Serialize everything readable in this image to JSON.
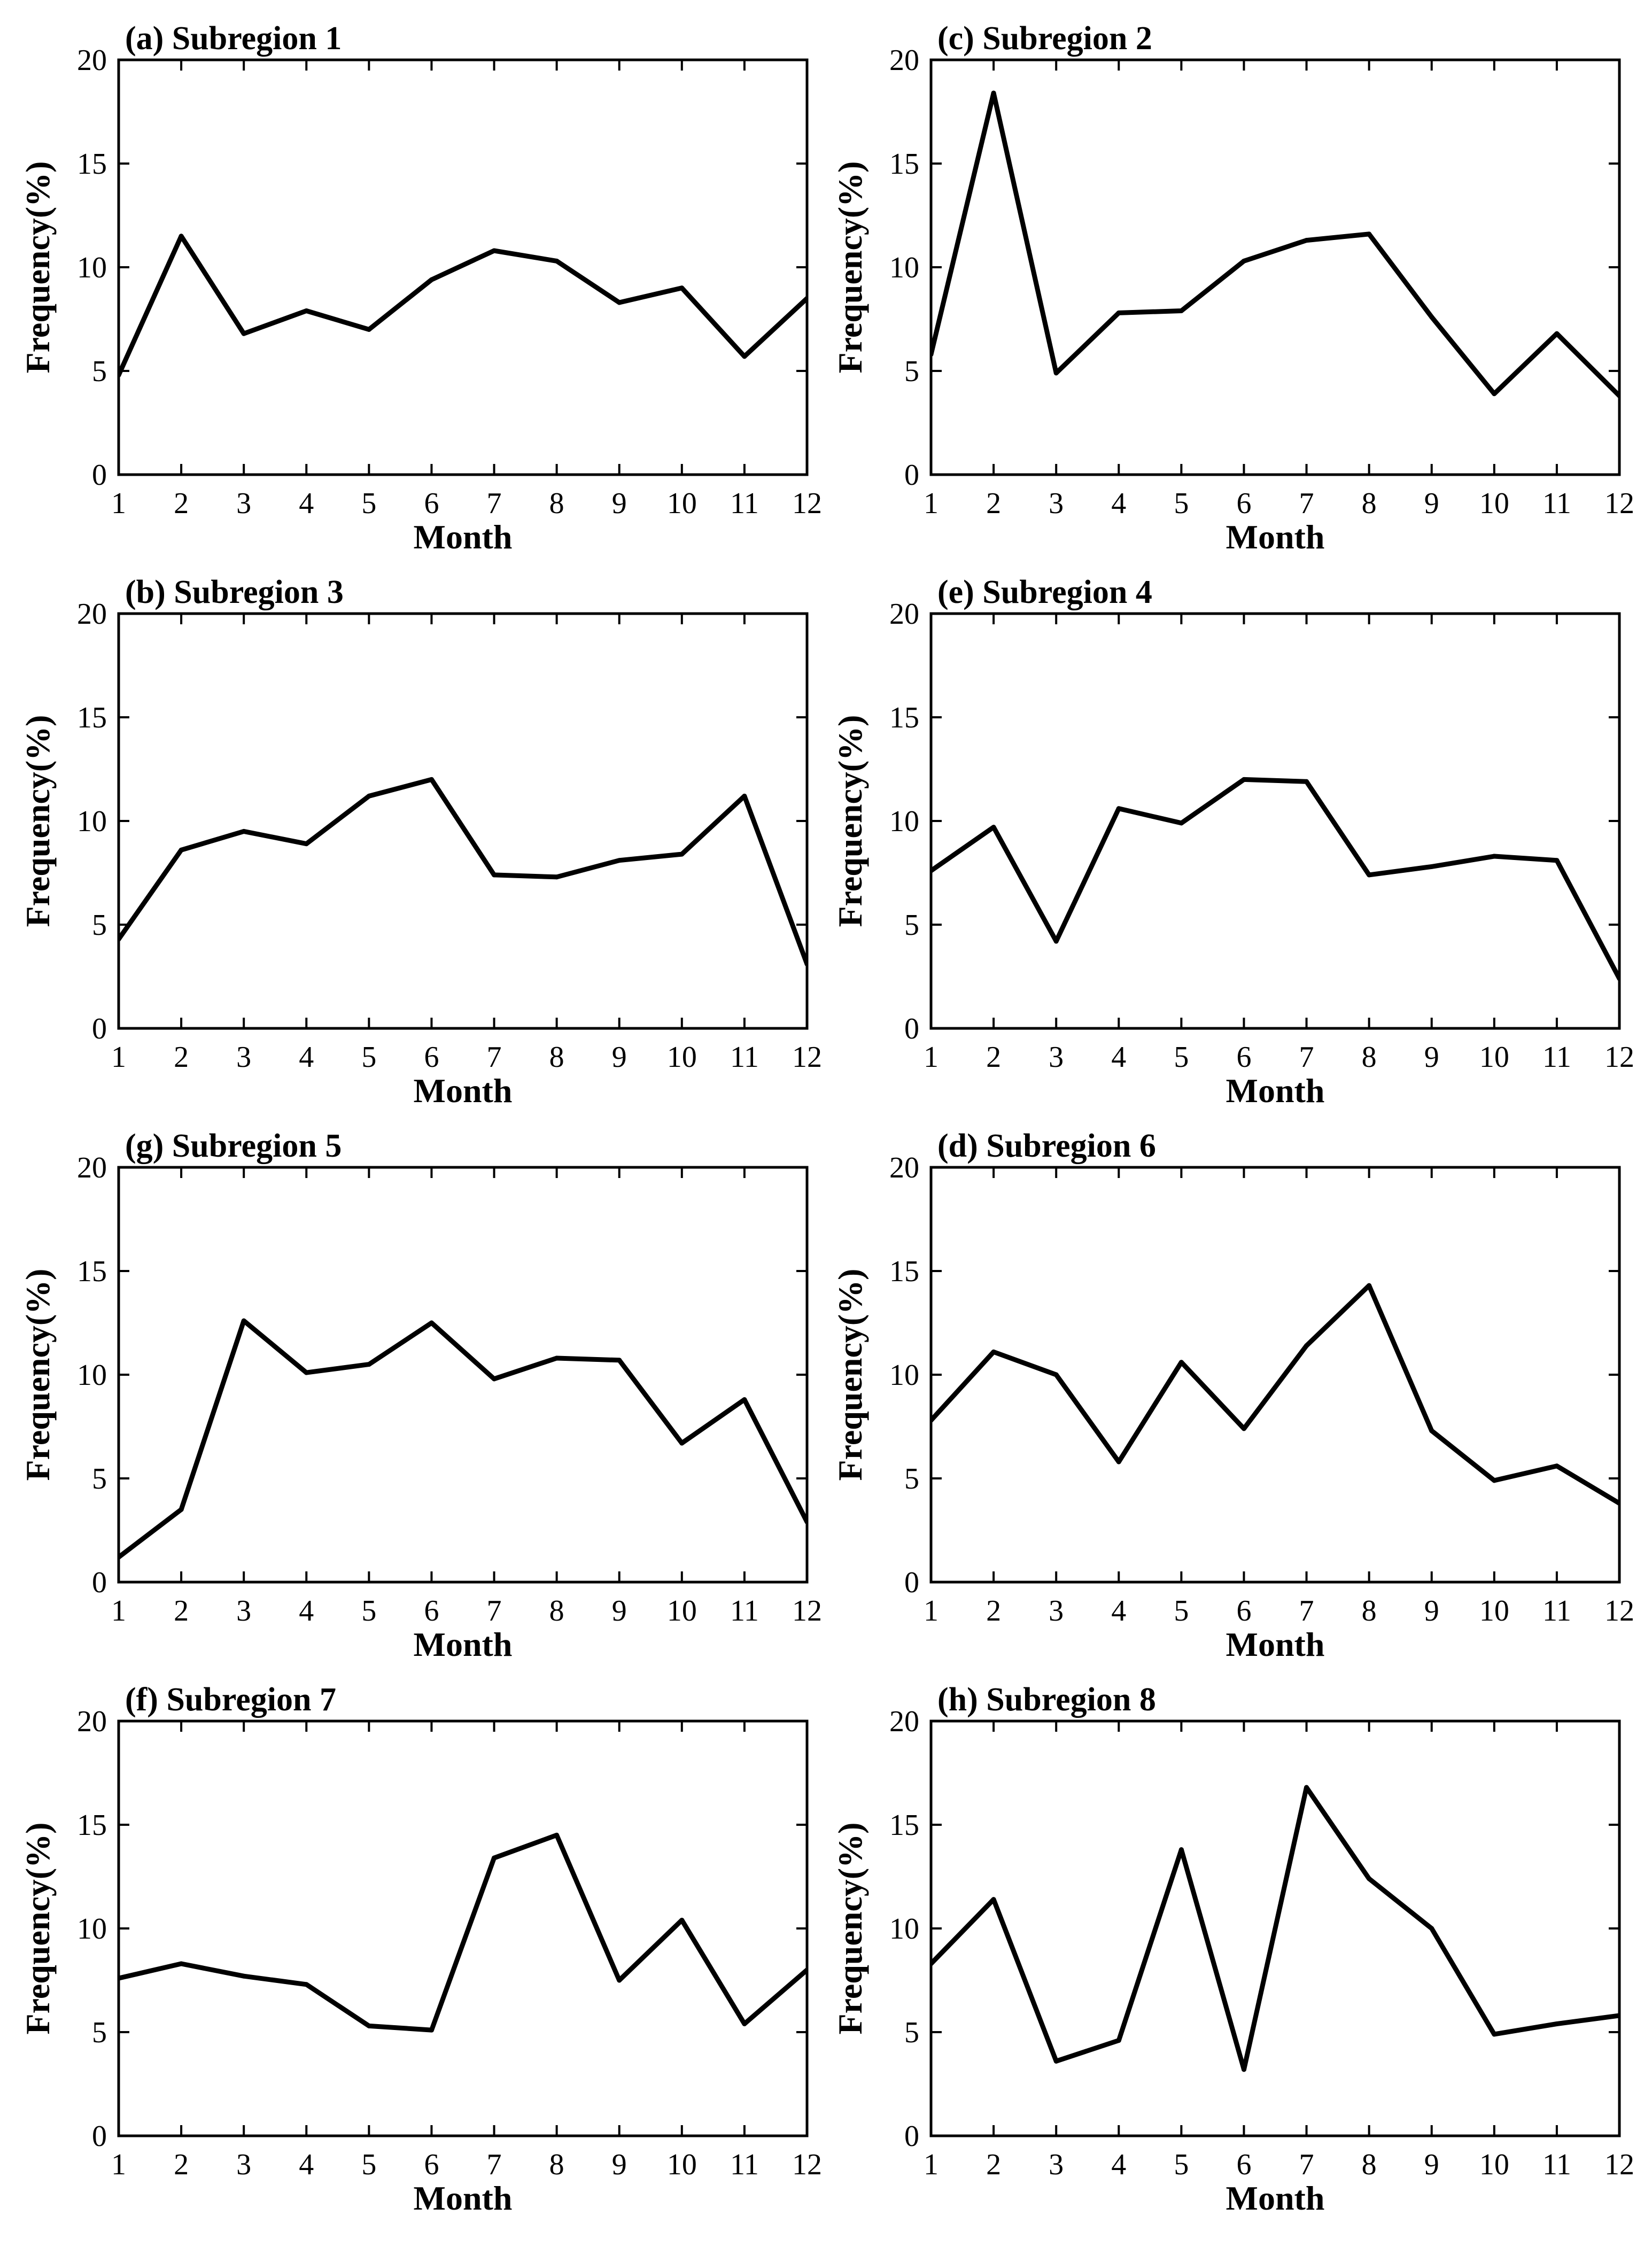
{
  "chart_data": [
    {
      "type": "line",
      "title": "(a) Subregion 1",
      "xlabel": "Month",
      "ylabel": "Frequency(%)",
      "xlim": [
        1,
        12
      ],
      "ylim": [
        0,
        20
      ],
      "x": [
        1,
        2,
        3,
        4,
        5,
        6,
        7,
        8,
        9,
        10,
        11,
        12
      ],
      "xticks": [
        "1",
        "2",
        "3",
        "4",
        "5",
        "6",
        "7",
        "8",
        "9",
        "10",
        "11",
        "12"
      ],
      "yticks": [
        "0",
        "5",
        "10",
        "15",
        "20"
      ],
      "values": [
        4.8,
        11.5,
        6.8,
        7.9,
        7.0,
        9.4,
        10.8,
        10.3,
        8.3,
        9.0,
        5.7,
        8.5
      ]
    },
    {
      "type": "line",
      "title": "(c) Subregion 2",
      "xlabel": "Month",
      "ylabel": "Frequency(%)",
      "xlim": [
        1,
        12
      ],
      "ylim": [
        0,
        20
      ],
      "x": [
        1,
        2,
        3,
        4,
        5,
        6,
        7,
        8,
        9,
        10,
        11,
        12
      ],
      "xticks": [
        "1",
        "2",
        "3",
        "4",
        "5",
        "6",
        "7",
        "8",
        "9",
        "10",
        "11",
        "12"
      ],
      "yticks": [
        "0",
        "5",
        "10",
        "15",
        "20"
      ],
      "values": [
        5.8,
        18.4,
        4.9,
        7.8,
        7.9,
        10.3,
        11.3,
        11.6,
        7.6,
        3.9,
        6.8,
        3.8
      ]
    },
    {
      "type": "line",
      "title": "(b) Subregion 3",
      "xlabel": "Month",
      "ylabel": "Frequency(%)",
      "xlim": [
        1,
        12
      ],
      "ylim": [
        0,
        20
      ],
      "x": [
        1,
        2,
        3,
        4,
        5,
        6,
        7,
        8,
        9,
        10,
        11,
        12
      ],
      "xticks": [
        "1",
        "2",
        "3",
        "4",
        "5",
        "6",
        "7",
        "8",
        "9",
        "10",
        "11",
        "12"
      ],
      "yticks": [
        "0",
        "5",
        "10",
        "15",
        "20"
      ],
      "values": [
        4.3,
        8.6,
        9.5,
        8.9,
        11.2,
        12.0,
        7.4,
        7.3,
        8.1,
        8.4,
        11.2,
        3.1
      ]
    },
    {
      "type": "line",
      "title": "(e) Subregion 4",
      "xlabel": "Month",
      "ylabel": "Frequency(%)",
      "xlim": [
        1,
        12
      ],
      "ylim": [
        0,
        20
      ],
      "x": [
        1,
        2,
        3,
        4,
        5,
        6,
        7,
        8,
        9,
        10,
        11,
        12
      ],
      "xticks": [
        "1",
        "2",
        "3",
        "4",
        "5",
        "6",
        "7",
        "8",
        "9",
        "10",
        "11",
        "12"
      ],
      "yticks": [
        "0",
        "5",
        "10",
        "15",
        "20"
      ],
      "values": [
        7.6,
        9.7,
        4.2,
        10.6,
        9.9,
        12.0,
        11.9,
        7.4,
        7.8,
        8.3,
        8.1,
        2.4
      ]
    },
    {
      "type": "line",
      "title": "(g) Subregion 5",
      "xlabel": "Month",
      "ylabel": "Frequency(%)",
      "xlim": [
        1,
        12
      ],
      "ylim": [
        0,
        20
      ],
      "x": [
        1,
        2,
        3,
        4,
        5,
        6,
        7,
        8,
        9,
        10,
        11,
        12
      ],
      "xticks": [
        "1",
        "2",
        "3",
        "4",
        "5",
        "6",
        "7",
        "8",
        "9",
        "10",
        "11",
        "12"
      ],
      "yticks": [
        "0",
        "5",
        "10",
        "15",
        "20"
      ],
      "values": [
        1.2,
        3.5,
        12.6,
        10.1,
        10.5,
        12.5,
        9.8,
        10.8,
        10.7,
        6.7,
        8.8,
        2.9
      ]
    },
    {
      "type": "line",
      "title": "(d) Subregion 6",
      "xlabel": "Month",
      "ylabel": "Frequency(%)",
      "xlim": [
        1,
        12
      ],
      "ylim": [
        0,
        20
      ],
      "x": [
        1,
        2,
        3,
        4,
        5,
        6,
        7,
        8,
        9,
        10,
        11,
        12
      ],
      "xticks": [
        "1",
        "2",
        "3",
        "4",
        "5",
        "6",
        "7",
        "8",
        "9",
        "10",
        "11",
        "12"
      ],
      "yticks": [
        "0",
        "5",
        "10",
        "15",
        "20"
      ],
      "values": [
        7.8,
        11.1,
        10.0,
        5.8,
        10.6,
        7.4,
        11.4,
        14.3,
        7.3,
        4.9,
        5.6,
        3.8
      ]
    },
    {
      "type": "line",
      "title": "(f) Subregion 7",
      "xlabel": "Month",
      "ylabel": "Frequency(%)",
      "xlim": [
        1,
        12
      ],
      "ylim": [
        0,
        20
      ],
      "x": [
        1,
        2,
        3,
        4,
        5,
        6,
        7,
        8,
        9,
        10,
        11,
        12
      ],
      "xticks": [
        "1",
        "2",
        "3",
        "4",
        "5",
        "6",
        "7",
        "8",
        "9",
        "10",
        "11",
        "12"
      ],
      "yticks": [
        "0",
        "5",
        "10",
        "15",
        "20"
      ],
      "values": [
        7.6,
        8.3,
        7.7,
        7.3,
        5.3,
        5.1,
        13.4,
        14.5,
        7.5,
        10.4,
        5.4,
        8.0
      ]
    },
    {
      "type": "line",
      "title": "(h) Subregion 8",
      "xlabel": "Month",
      "ylabel": "Frequency(%)",
      "xlim": [
        1,
        12
      ],
      "ylim": [
        0,
        20
      ],
      "x": [
        1,
        2,
        3,
        4,
        5,
        6,
        7,
        8,
        9,
        10,
        11,
        12
      ],
      "xticks": [
        "1",
        "2",
        "3",
        "4",
        "5",
        "6",
        "7",
        "8",
        "9",
        "10",
        "11",
        "12"
      ],
      "yticks": [
        "0",
        "5",
        "10",
        "15",
        "20"
      ],
      "values": [
        8.3,
        11.4,
        3.6,
        4.6,
        13.8,
        3.2,
        16.8,
        12.4,
        10.0,
        4.9,
        5.4,
        5.8
      ]
    }
  ]
}
